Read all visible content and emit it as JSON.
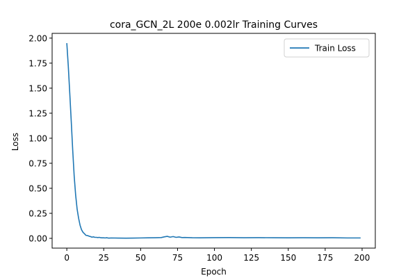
{
  "chart_data": {
    "type": "line",
    "title": "cora_GCN_2L  200e  0.002lr  Training Curves",
    "xlabel": "Epoch",
    "ylabel": "Loss",
    "xlim": [
      -9.95,
      208.95
    ],
    "ylim": [
      -0.0975,
      2.0475
    ],
    "xticks": [
      0,
      25,
      50,
      75,
      100,
      125,
      150,
      175,
      200
    ],
    "yticks": [
      0.0,
      0.25,
      0.5,
      0.75,
      1.0,
      1.25,
      1.5,
      1.75,
      2.0
    ],
    "ytick_labels": [
      "0.00",
      "0.25",
      "0.50",
      "0.75",
      "1.00",
      "1.25",
      "1.50",
      "1.75",
      "2.00"
    ],
    "grid": false,
    "legend_position": "top-right",
    "series": [
      {
        "name": "Train Loss",
        "color": "#1f77b4",
        "x": [
          0,
          1,
          2,
          3,
          4,
          5,
          6,
          7,
          8,
          9,
          10,
          11,
          12,
          13,
          14,
          15,
          16,
          17,
          18,
          19,
          20,
          21,
          22,
          23,
          24,
          25,
          26,
          27,
          28,
          29,
          30,
          35,
          40,
          45,
          50,
          55,
          60,
          64,
          66,
          68,
          70,
          72,
          74,
          76,
          78,
          80,
          85,
          90,
          95,
          100,
          110,
          120,
          130,
          140,
          150,
          160,
          170,
          180,
          190,
          199
        ],
        "y": [
          1.95,
          1.72,
          1.45,
          1.17,
          0.88,
          0.62,
          0.43,
          0.29,
          0.2,
          0.13,
          0.085,
          0.06,
          0.045,
          0.03,
          0.028,
          0.022,
          0.018,
          0.012,
          0.015,
          0.01,
          0.01,
          0.008,
          0.01,
          0.006,
          0.005,
          0.005,
          0.004,
          0.006,
          0.003,
          0.003,
          0.004,
          0.003,
          0.002,
          0.003,
          0.004,
          0.005,
          0.006,
          0.008,
          0.015,
          0.02,
          0.012,
          0.018,
          0.01,
          0.014,
          0.008,
          0.009,
          0.006,
          0.005,
          0.006,
          0.007,
          0.008,
          0.006,
          0.007,
          0.006,
          0.005,
          0.006,
          0.005,
          0.006,
          0.004,
          0.004
        ]
      }
    ]
  }
}
